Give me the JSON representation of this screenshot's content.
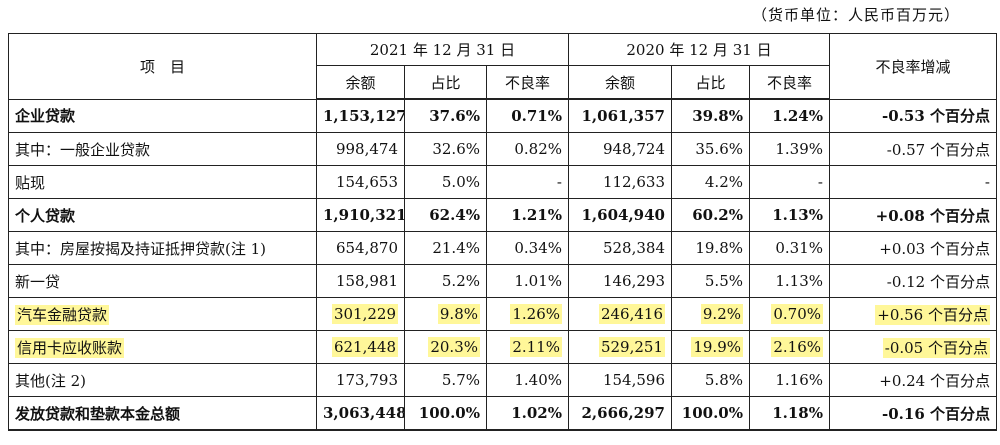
{
  "unit_note": "（货币单位：人民币百万元）",
  "header": {
    "item": "项　目",
    "year_2021": "2021 年 12 月 31 日",
    "year_2020": "2020 年 12 月 31 日",
    "change": "不良率增减",
    "balance": "余额",
    "share": "占比",
    "npl": "不良率"
  },
  "highlight_color": "#fff799",
  "rows": [
    {
      "label": "企业贷款",
      "b21": "1,153,127",
      "s21": "37.6%",
      "n21": "0.71%",
      "b20": "1,061,357",
      "s20": "39.8%",
      "n20": "1.24%",
      "chg": "-0.53 个百分点"
    },
    {
      "label": "其中：一般企业贷款",
      "b21": "998,474",
      "s21": "32.6%",
      "n21": "0.82%",
      "b20": "948,724",
      "s20": "35.6%",
      "n20": "1.39%",
      "chg": "-0.57 个百分点"
    },
    {
      "label": "贴现",
      "b21": "154,653",
      "s21": "5.0%",
      "n21": "-",
      "b20": "112,633",
      "s20": "4.2%",
      "n20": "-",
      "chg": "-"
    },
    {
      "label": "个人贷款",
      "b21": "1,910,321",
      "s21": "62.4%",
      "n21": "1.21%",
      "b20": "1,604,940",
      "s20": "60.2%",
      "n20": "1.13%",
      "chg": "+0.08 个百分点"
    },
    {
      "label": "其中：房屋按揭及持证抵押贷款(注 1)",
      "b21": "654,870",
      "s21": "21.4%",
      "n21": "0.34%",
      "b20": "528,384",
      "s20": "19.8%",
      "n20": "0.31%",
      "chg": "+0.03 个百分点"
    },
    {
      "label": "新一贷",
      "b21": "158,981",
      "s21": "5.2%",
      "n21": "1.01%",
      "b20": "146,293",
      "s20": "5.5%",
      "n20": "1.13%",
      "chg": "-0.12 个百分点"
    },
    {
      "label": "汽车金融贷款",
      "b21": "301,229",
      "s21": "9.8%",
      "n21": "1.26%",
      "b20": "246,416",
      "s20": "9.2%",
      "n20": "0.70%",
      "chg": "+0.56 个百分点"
    },
    {
      "label": "信用卡应收账款",
      "b21": "621,448",
      "s21": "20.3%",
      "n21": "2.11%",
      "b20": "529,251",
      "s20": "19.9%",
      "n20": "2.16%",
      "chg": "-0.05 个百分点"
    },
    {
      "label": "其他(注 2)",
      "b21": "173,793",
      "s21": "5.7%",
      "n21": "1.40%",
      "b20": "154,596",
      "s20": "5.8%",
      "n20": "1.16%",
      "chg": "+0.24 个百分点"
    },
    {
      "label": "发放贷款和垫款本金总额",
      "b21": "3,063,448",
      "s21": "100.0%",
      "n21": "1.02%",
      "b20": "2,666,297",
      "s20": "100.0%",
      "n20": "1.18%",
      "chg": "-0.16 个百分点"
    }
  ]
}
